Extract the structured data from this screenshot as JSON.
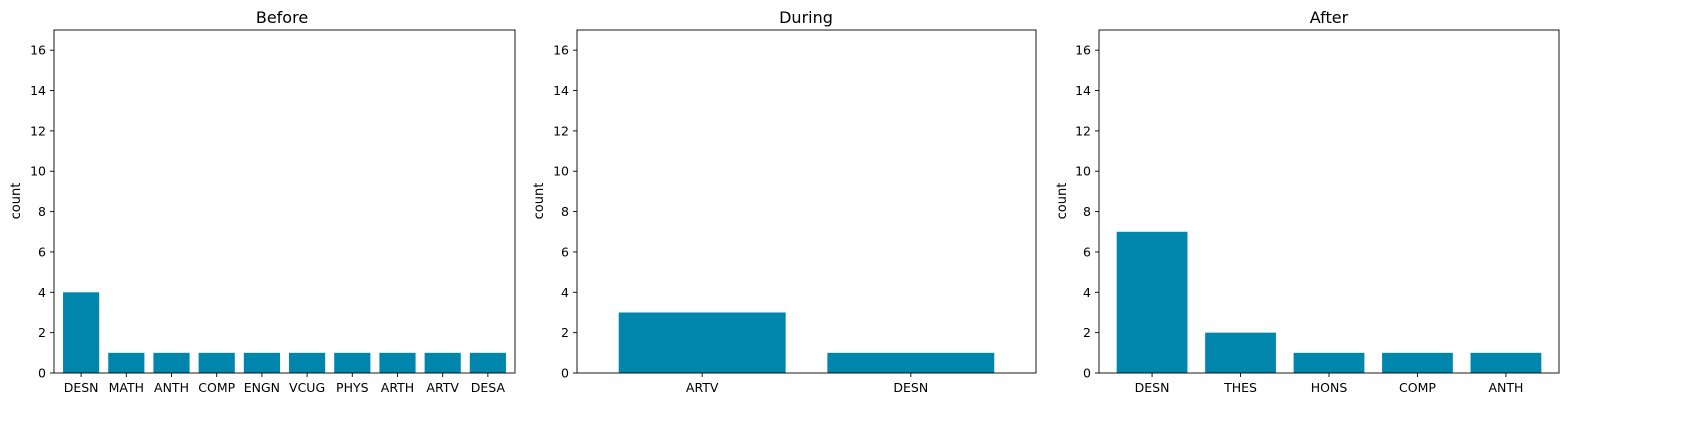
{
  "bar_color": "#0086ad",
  "chart_data": [
    {
      "type": "bar",
      "title": "Before",
      "xlabel": "",
      "ylabel": "count",
      "ylim": [
        0,
        17
      ],
      "yticks": [
        0,
        2,
        4,
        6,
        8,
        10,
        12,
        14,
        16
      ],
      "categories": [
        "DESN",
        "MATH",
        "ANTH",
        "COMP",
        "ENGN",
        "VCUG",
        "PHYS",
        "ARTH",
        "ARTV",
        "DESA"
      ],
      "values": [
        4,
        1,
        1,
        1,
        1,
        1,
        1,
        1,
        1,
        1
      ]
    },
    {
      "type": "bar",
      "title": "During",
      "xlabel": "",
      "ylabel": "count",
      "ylim": [
        0,
        17
      ],
      "yticks": [
        0,
        2,
        4,
        6,
        8,
        10,
        12,
        14,
        16
      ],
      "categories": [
        "ARTV",
        "DESN"
      ],
      "values": [
        3,
        1
      ]
    },
    {
      "type": "bar",
      "title": "After",
      "xlabel": "",
      "ylabel": "count",
      "ylim": [
        0,
        17
      ],
      "yticks": [
        0,
        2,
        4,
        6,
        8,
        10,
        12,
        14,
        16
      ],
      "categories": [
        "DESN",
        "THES",
        "HONS",
        "COMP",
        "ANTH"
      ],
      "values": [
        7,
        2,
        1,
        1,
        1
      ]
    }
  ]
}
